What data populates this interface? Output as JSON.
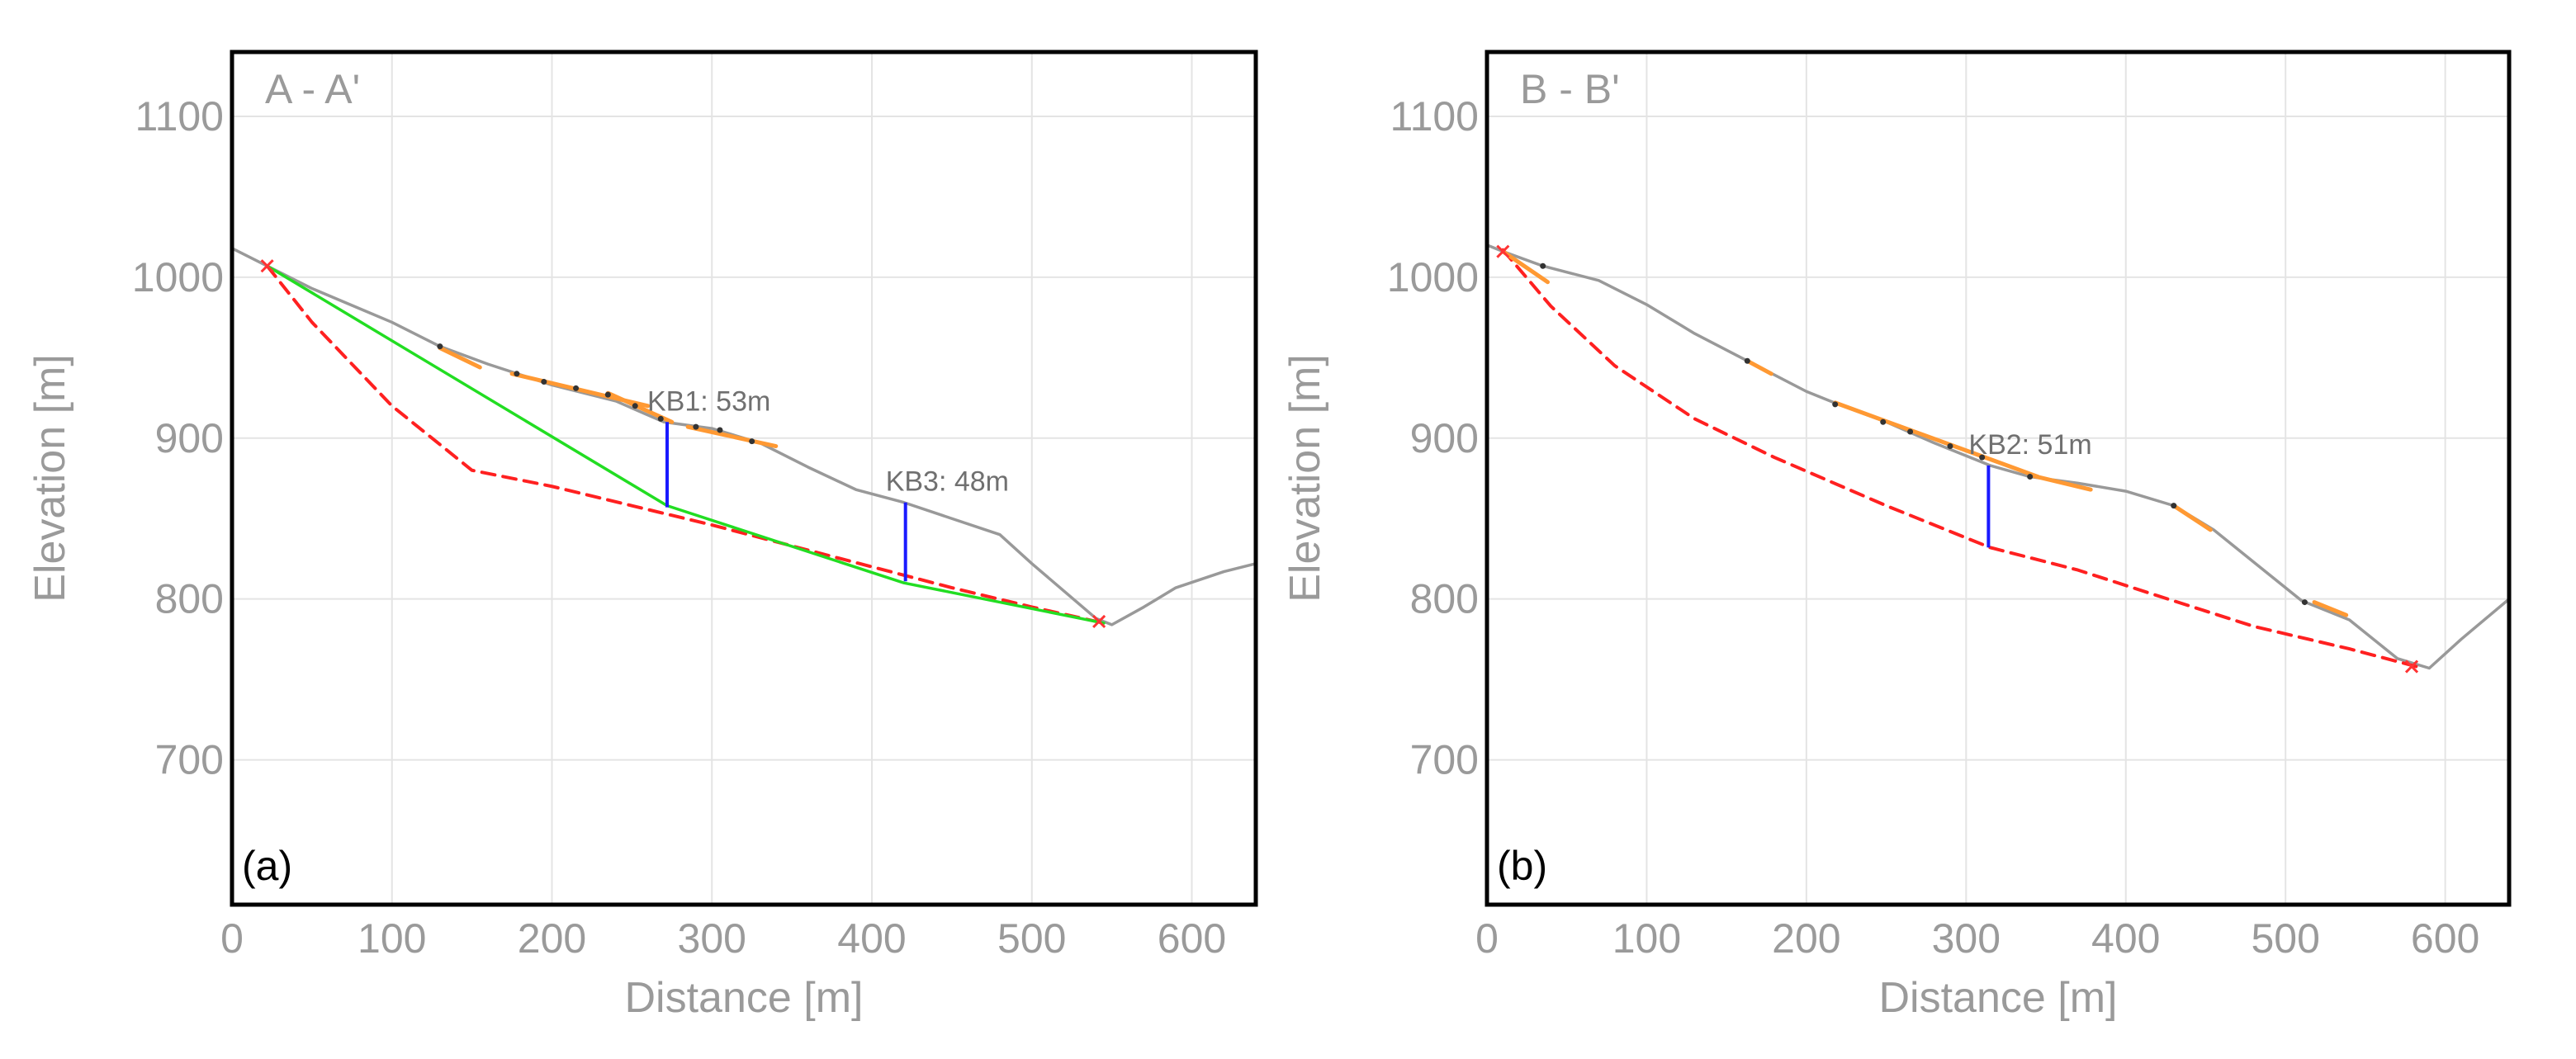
{
  "chart_data": [
    {
      "type": "line",
      "panel_tag": "(a)",
      "title": "A - A'",
      "xlabel": "Distance [m]",
      "ylabel": "Elevation [m]",
      "xlim": [
        0,
        640
      ],
      "ylim": [
        610,
        1140
      ],
      "xticks": [
        0,
        100,
        200,
        300,
        400,
        500,
        600
      ],
      "yticks": [
        700,
        800,
        900,
        1000,
        1100
      ],
      "grid": true,
      "series": [
        {
          "name": "terrain profile",
          "color": "#999999",
          "style": "solid",
          "x": [
            0,
            20,
            50,
            100,
            130,
            160,
            200,
            240,
            270,
            300,
            330,
            360,
            390,
            420,
            450,
            480,
            500,
            520,
            540,
            550,
            570,
            590,
            620,
            640
          ],
          "y": [
            1018,
            1008,
            993,
            972,
            957,
            946,
            933,
            923,
            910,
            906,
            897,
            882,
            868,
            860,
            850,
            840,
            822,
            805,
            788,
            784,
            795,
            807,
            817,
            822
          ]
        },
        {
          "name": "dashed red curve",
          "color": "#ff2020",
          "style": "dashed",
          "x": [
            22,
            50,
            100,
            150,
            200,
            250,
            300,
            350,
            400,
            450,
            500,
            545
          ],
          "y": [
            1007,
            972,
            920,
            880,
            870,
            858,
            846,
            833,
            820,
            807,
            795,
            785
          ]
        },
        {
          "name": "green line",
          "color": "#22dd22",
          "style": "solid",
          "x": [
            22,
            272,
            420,
            545
          ],
          "y": [
            1007,
            858,
            810,
            785
          ]
        },
        {
          "name": "orange segments",
          "color": "#ff9933",
          "style": "segments",
          "segments": [
            [
              [
                130,
                956
              ],
              [
                155,
                944
              ]
            ],
            [
              [
                175,
                940
              ],
              [
                260,
                920
              ]
            ],
            [
              [
                235,
                928
              ],
              [
                275,
                910
              ]
            ],
            [
              [
                285,
                907
              ],
              [
                340,
                895
              ]
            ]
          ]
        },
        {
          "name": "black points",
          "color": "#333333",
          "style": "points",
          "x": [
            130,
            178,
            195,
            215,
            235,
            252,
            268,
            290,
            305,
            325
          ],
          "y": [
            957,
            940,
            935,
            931,
            927,
            920,
            912,
            907,
            905,
            898
          ]
        },
        {
          "name": "red endpoints",
          "color": "#ff3333",
          "style": "x-markers",
          "x": [
            22,
            542
          ],
          "y": [
            1007,
            786
          ]
        }
      ],
      "annotations": [
        {
          "label": "KB1: 53m",
          "x": 272,
          "y_top": 910,
          "y_bottom": 857
        },
        {
          "label": "KB3: 48m",
          "x": 421,
          "y_top": 860,
          "y_bottom": 811
        }
      ]
    },
    {
      "type": "line",
      "panel_tag": "(b)",
      "title": "B - B'",
      "xlabel": "Distance [m]",
      "ylabel": "Elevation [m]",
      "xlim": [
        0,
        640
      ],
      "ylim": [
        610,
        1140
      ],
      "xticks": [
        0,
        100,
        200,
        300,
        400,
        500,
        600
      ],
      "yticks": [
        700,
        800,
        900,
        1000,
        1100
      ],
      "grid": true,
      "series": [
        {
          "name": "terrain profile",
          "color": "#999999",
          "style": "solid",
          "x": [
            0,
            10,
            35,
            70,
            100,
            130,
            165,
            200,
            220,
            250,
            280,
            315,
            340,
            370,
            400,
            430,
            455,
            480,
            510,
            540,
            570,
            590,
            610,
            640
          ],
          "y": [
            1020,
            1016,
            1007,
            998,
            983,
            965,
            947,
            929,
            921,
            910,
            897,
            883,
            876,
            872,
            867,
            858,
            843,
            823,
            799,
            787,
            763,
            757,
            775,
            800
          ]
        },
        {
          "name": "dashed red curve",
          "color": "#ff2020",
          "style": "dashed",
          "x": [
            10,
            40,
            80,
            130,
            180,
            250,
            315,
            370,
            420,
            480,
            540,
            582
          ],
          "y": [
            1017,
            982,
            945,
            912,
            888,
            858,
            832,
            818,
            802,
            783,
            769,
            758
          ]
        },
        {
          "name": "orange segments",
          "color": "#ff9933",
          "style": "segments",
          "segments": [
            [
              [
                10,
                1016
              ],
              [
                38,
                997
              ]
            ],
            [
              [
                163,
                948
              ],
              [
                178,
                940
              ]
            ],
            [
              [
                218,
                922
              ],
              [
                345,
                876
              ]
            ],
            [
              [
                340,
                877
              ],
              [
                378,
                868
              ]
            ],
            [
              [
                430,
                858
              ],
              [
                453,
                843
              ]
            ],
            [
              [
                518,
                798
              ],
              [
                538,
                790
              ]
            ]
          ]
        },
        {
          "name": "black points",
          "color": "#333333",
          "style": "points",
          "x": [
            35,
            163,
            218,
            248,
            265,
            290,
            310,
            340,
            430,
            512
          ],
          "y": [
            1007,
            948,
            921,
            910,
            904,
            895,
            888,
            876,
            858,
            798
          ]
        },
        {
          "name": "red endpoints",
          "color": "#ff3333",
          "style": "x-markers",
          "x": [
            10,
            579
          ],
          "y": [
            1016,
            758
          ]
        }
      ],
      "annotations": [
        {
          "label": "KB2: 51m",
          "x": 314,
          "y_top": 883,
          "y_bottom": 832
        }
      ]
    }
  ]
}
